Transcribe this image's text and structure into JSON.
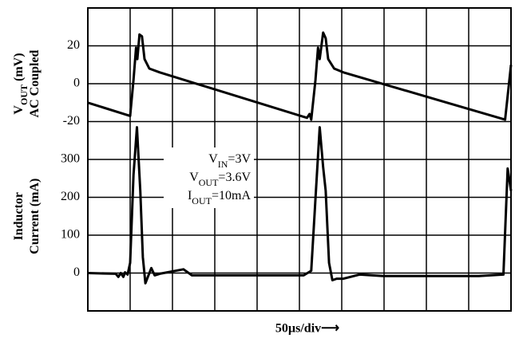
{
  "chart_data": [
    {
      "type": "line",
      "ylabel": [
        [
          {
            "t": "V"
          },
          {
            "t": "OUT",
            "sub": true
          },
          {
            "t": " (mV)"
          }
        ],
        [
          {
            "t": "AC Coupled"
          }
        ]
      ],
      "xlim": [
        0,
        500
      ],
      "xticks": [
        0,
        50,
        100,
        150,
        200,
        250,
        300,
        350,
        400,
        450,
        500
      ],
      "ylim": [
        -120,
        40
      ],
      "yticks": [
        -20,
        0,
        20
      ],
      "grid": true,
      "series": [
        {
          "color": "#000000",
          "x": [
            0,
            50,
            54,
            57,
            58.5,
            61,
            64,
            67,
            72.6,
            85,
            259,
            262,
            264,
            269,
            272,
            274,
            278,
            281,
            284,
            291,
            302,
            493,
            500
          ],
          "values": [
            -10,
            -17,
            2,
            19,
            13,
            26,
            25,
            13,
            8,
            6,
            -18,
            -16,
            -19,
            2,
            19,
            13,
            27,
            24,
            13,
            8,
            6,
            -19,
            10
          ]
        }
      ]
    },
    {
      "type": "line",
      "ylabel": [
        [
          {
            "t": "Inductor"
          }
        ],
        [
          {
            "t": "Current (mA)"
          }
        ]
      ],
      "xlabel": "50µs/div⟶",
      "xlim": [
        0,
        500
      ],
      "ylim": [
        -100,
        700
      ],
      "yticks": [
        0,
        100,
        200,
        300
      ],
      "annotations": [
        [
          {
            "t": "V"
          },
          {
            "t": "IN",
            "sub": true
          },
          {
            "t": "=3V"
          }
        ],
        [
          {
            "t": "V"
          },
          {
            "t": "OUT",
            "sub": true
          },
          {
            "t": "=3.6V"
          }
        ],
        [
          {
            "t": "I"
          },
          {
            "t": "OUT",
            "sub": true
          },
          {
            "t": "=10mA"
          }
        ]
      ],
      "series": [
        {
          "color": "#000000",
          "x": [
            0,
            33,
            36,
            39,
            42,
            44,
            47,
            50,
            54,
            58,
            62,
            65,
            68,
            72,
            75,
            79,
            85,
            113,
            123,
            255,
            264,
            269,
            274,
            278,
            281,
            285,
            289,
            294,
            302,
            321,
            349,
            462,
            491,
            496,
            500
          ],
          "values": [
            0,
            -2,
            -10,
            0,
            -10,
            2,
            -4,
            27,
            259,
            385,
            217,
            42,
            -27,
            -4,
            13,
            -6,
            -2,
            10,
            -6,
            -6,
            6,
            196,
            385,
            280,
            217,
            27,
            -19,
            -15,
            -15,
            -4,
            -8,
            -8,
            -4,
            276,
            217
          ]
        }
      ]
    }
  ]
}
